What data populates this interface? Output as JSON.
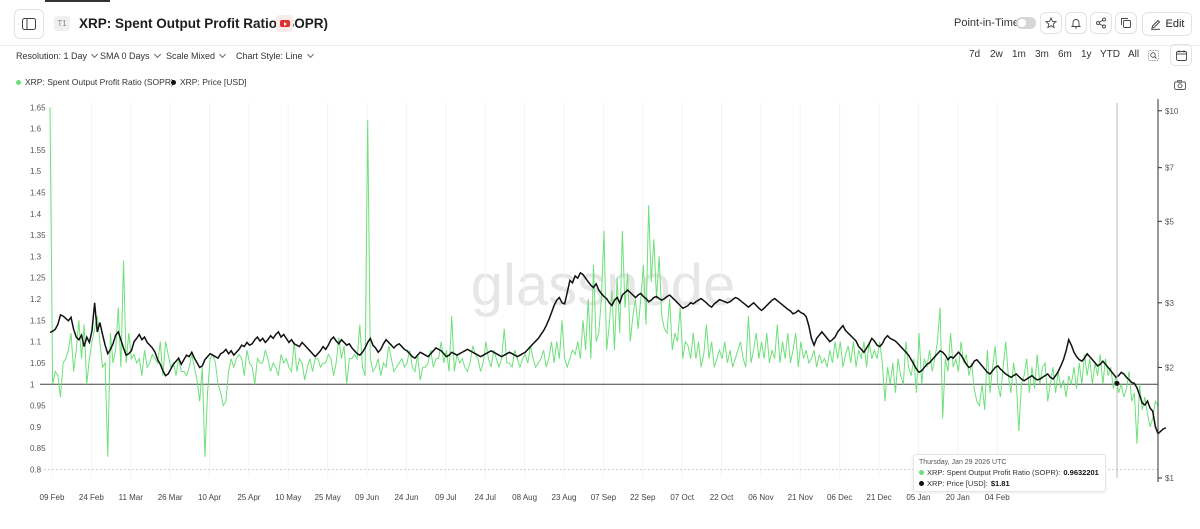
{
  "header": {
    "badge": "T1",
    "title": "XRP: Spent Output Profit Ratio (SOPR)",
    "point_in_time_label": "Point-in-Time",
    "edit_label": "Edit"
  },
  "toolbar": {
    "resolution": "Resolution: 1 Day",
    "sma": "SMA 0 Days",
    "scale": "Scale Mixed",
    "chart_style": "Chart Style: Line",
    "ranges": [
      "7d",
      "2w",
      "1m",
      "3m",
      "6m",
      "1y",
      "YTD",
      "All"
    ]
  },
  "colors": {
    "sopr": "#6ee07a",
    "price": "#111111",
    "reference": "#333333"
  },
  "chart_data": {
    "type": "line",
    "watermark": "glassnode",
    "x_tick_labels": [
      "09 Feb",
      "24 Feb",
      "11 Mar",
      "26 Mar",
      "10 Apr",
      "25 Apr",
      "10 May",
      "25 May",
      "09 Jun",
      "24 Jun",
      "09 Jul",
      "24 Jul",
      "08 Aug",
      "23 Aug",
      "07 Sep",
      "22 Sep",
      "07 Oct",
      "22 Oct",
      "06 Nov",
      "21 Nov",
      "06 Dec",
      "21 Dec",
      "05 Jan",
      "20 Jan",
      "04 Feb"
    ],
    "left_axis": {
      "ylim": [
        0.78,
        1.66
      ],
      "ticks": [
        "0.8",
        "0.85",
        "0.9",
        "0.95",
        "1",
        "1.05",
        "1.1",
        "1.15",
        "1.2",
        "1.25",
        "1.3",
        "1.35",
        "1.4",
        "1.45",
        "1.5",
        "1.55",
        "1.6",
        "1.65"
      ],
      "tick_values": [
        0.8,
        0.85,
        0.9,
        0.95,
        1,
        1.05,
        1.1,
        1.15,
        1.2,
        1.25,
        1.3,
        1.35,
        1.4,
        1.45,
        1.5,
        1.55,
        1.6,
        1.65
      ]
    },
    "right_axis": {
      "scale": "log",
      "ticks": [
        "$1",
        "$2",
        "$3",
        "$5",
        "$7",
        "$10"
      ],
      "tick_values": [
        1,
        2,
        3,
        5,
        7,
        10
      ]
    },
    "reference_line": 1,
    "series": [
      {
        "name": "XRP: Spent Output Profit Ratio (SOPR)",
        "axis": "left",
        "values": [
          1.65,
          1.0,
          1.03,
          1.02,
          0.97,
          1.05,
          1.06,
          1.08,
          1.12,
          1.03,
          1.08,
          1.15,
          1.06,
          1.14,
          1.0,
          1.06,
          1.1,
          1.13,
          1.16,
          1.1,
          1.04,
          1.05,
          0.83,
          1.12,
          1.05,
          1.08,
          1.18,
          1.04,
          1.29,
          1.05,
          1.12,
          1.06,
          1.07,
          1.05,
          1.06,
          1.02,
          1.08,
          1.04,
          1.05,
          1.07,
          1.06,
          1.05,
          1.1,
          1.02,
          1.1,
          1.07,
          1.04,
          1.05,
          1.02,
          1.06,
          1.03,
          1.03,
          1.02,
          1.04,
          1.07,
          1.04,
          1.01,
          0.96,
          1.04,
          0.83,
          0.98,
          1.06,
          1.07,
          1.05,
          1.0,
          0.98,
          0.95,
          0.96,
          1.03,
          1.06,
          1.04,
          1.06,
          1.07,
          1.06,
          1.02,
          1.08,
          1.05,
          1.04,
          1.0,
          1.06,
          1.05,
          1.05,
          1.08,
          1.06,
          1.03,
          1.05,
          1.04,
          1.02,
          1.07,
          1.05,
          1.06,
          1.04,
          1.03,
          1.1,
          1.03,
          1.06,
          1.05,
          1.01,
          1.04,
          1.06,
          1.03,
          1.06,
          1.06,
          1.04,
          1.05,
          1.05,
          1.07,
          1.06,
          1.02,
          1.05,
          1.11,
          1.06,
          1.09,
          1.0,
          1.06,
          1.06,
          1.07,
          1.06,
          1.14,
          1.04,
          1.02,
          1.62,
          1.06,
          1.03,
          1.04,
          1.06,
          1.02,
          1.05,
          1.04,
          1.09,
          1.06,
          1.03,
          1.04,
          1.05,
          1.06,
          1.04,
          1.05,
          1.08,
          1.04,
          1.03,
          1.07,
          1.01,
          1.04,
          1.04,
          1.05,
          1.08,
          1.04,
          1.06,
          1.06,
          1.1,
          1.05,
          1.08,
          1.03,
          1.16,
          1.03,
          1.07,
          1.05,
          1.06,
          1.04,
          1.03,
          1.05,
          1.09,
          1.07,
          1.06,
          1.03,
          1.05,
          1.1,
          1.06,
          1.04,
          1.08,
          1.06,
          1.04,
          1.06,
          1.13,
          1.05,
          1.05,
          1.04,
          1.08,
          1.06,
          1.04,
          1.06,
          1.07,
          1.05,
          1.09,
          1.06,
          1.04,
          1.05,
          1.06,
          1.08,
          1.04,
          1.06,
          1.1,
          1.05,
          1.1,
          1.06,
          1.15,
          1.06,
          1.04,
          1.06,
          1.08,
          1.07,
          1.1,
          1.06,
          1.15,
          1.08,
          1.2,
          1.06,
          1.28,
          1.1,
          1.12,
          1.2,
          1.36,
          1.08,
          1.14,
          1.22,
          1.08,
          1.25,
          1.12,
          1.36,
          1.18,
          1.26,
          1.1,
          1.16,
          1.2,
          1.13,
          1.2,
          1.28,
          1.14,
          1.42,
          1.24,
          1.34,
          1.2,
          1.3,
          1.16,
          1.13,
          1.12,
          1.2,
          1.08,
          1.12,
          1.1,
          1.18,
          1.06,
          1.1,
          1.09,
          1.06,
          1.12,
          1.06,
          1.1,
          1.04,
          1.07,
          1.14,
          1.06,
          1.1,
          1.04,
          1.06,
          1.08,
          1.06,
          1.1,
          1.05,
          1.08,
          1.04,
          1.06,
          1.08,
          1.1,
          1.06,
          1.04,
          1.16,
          1.05,
          1.08,
          1.12,
          1.06,
          1.1,
          1.06,
          1.12,
          1.05,
          1.08,
          1.06,
          1.14,
          1.05,
          1.1,
          1.06,
          1.12,
          1.05,
          1.08,
          1.12,
          1.04,
          1.1,
          1.06,
          1.08,
          1.05,
          1.06,
          1.08,
          1.04,
          1.07,
          1.05,
          1.06,
          1.04,
          1.08,
          1.05,
          1.1,
          1.06,
          1.1,
          1.04,
          1.07,
          1.09,
          1.05,
          1.1,
          1.04,
          1.08,
          1.06,
          1.1,
          1.04,
          1.1,
          1.06,
          1.08,
          1.06,
          1.1,
          1.05,
          0.96,
          1.04,
          1.0,
          1.05,
          0.98,
          1.06,
          1.02,
          1.0,
          1.1,
          1.04,
          1.02,
          1.06,
          0.98,
          1.12,
          1.0,
          1.06,
          1.04,
          1.08,
          1.03,
          1.06,
          1.1,
          1.18,
          0.92,
          1.06,
          1.03,
          1.12,
          1.04,
          1.06,
          1.03,
          1.1,
          1.05,
          1.07,
          1.02,
          1.05,
          0.99,
          0.96,
          0.95,
          1.0,
          0.94,
          1.08,
          0.98,
          1.04,
          1.09,
          1.0,
          0.97,
          1.04,
          1.1,
          1.02,
          0.98,
          1.05,
          1.01,
          0.89,
          1.0,
          1.02,
          1.06,
          0.98,
          1.04,
          0.99,
          1.07,
          1.0,
          1.04,
          1.05,
          0.96,
          1.0,
          1.04,
          0.98,
          1.03,
          0.99,
          1.01,
          0.97,
          1.02,
          1.0,
          1.04,
          0.99,
          1.05,
          1.0,
          1.07,
          1.02,
          1.06,
          1.0,
          1.05,
          1.02,
          1.07,
          1.0,
          1.06,
          1.02,
          1.04,
          0.99,
          1.02,
          0.98,
          1.0,
          0.97,
          0.99,
          1.03,
          0.96,
          0.98,
          0.86,
          1.0,
          0.94,
          0.97,
          0.93,
          0.9,
          0.92,
          0.96,
          0.95
        ],
        "color": "#6ee07a"
      },
      {
        "name": "XRP: Price [USD]",
        "axis": "right",
        "values": [
          2.49,
          2.51,
          2.54,
          2.62,
          2.78,
          2.76,
          2.72,
          2.68,
          2.74,
          2.54,
          2.42,
          2.38,
          2.45,
          2.28,
          2.42,
          2.34,
          2.52,
          3.0,
          2.5,
          2.65,
          2.46,
          2.3,
          2.18,
          2.24,
          2.32,
          2.45,
          2.5,
          2.38,
          2.26,
          2.16,
          2.18,
          2.22,
          2.35,
          2.4,
          2.46,
          2.38,
          2.42,
          2.34,
          2.3,
          2.26,
          2.2,
          2.1,
          2.04,
          1.96,
          1.9,
          1.92,
          1.98,
          2.04,
          2.08,
          2.12,
          2.04,
          2.1,
          2.16,
          2.14,
          2.2,
          2.12,
          2.06,
          2.0,
          2.02,
          2.1,
          2.14,
          2.18,
          2.16,
          2.14,
          2.12,
          2.18,
          2.2,
          2.24,
          2.18,
          2.22,
          2.16,
          2.2,
          2.24,
          2.3,
          2.28,
          2.34,
          2.3,
          2.32,
          2.38,
          2.42,
          2.36,
          2.4,
          2.34,
          2.38,
          2.44,
          2.4,
          2.46,
          2.5,
          2.42,
          2.46,
          2.4,
          2.34,
          2.38,
          2.32,
          2.3,
          2.28,
          2.34,
          2.3,
          2.26,
          2.22,
          2.18,
          2.14,
          2.18,
          2.22,
          2.28,
          2.24,
          2.3,
          2.38,
          2.42,
          2.36,
          2.32,
          2.38,
          2.34,
          2.3,
          2.32,
          2.26,
          2.22,
          2.18,
          2.16,
          2.2,
          2.26,
          2.34,
          2.4,
          2.3,
          2.26,
          2.2,
          2.24,
          2.32,
          2.38,
          2.34,
          2.3,
          2.26,
          2.3,
          2.32,
          2.28,
          2.24,
          2.22,
          2.18,
          2.14,
          2.12,
          2.16,
          2.2,
          2.18,
          2.16,
          2.14,
          2.18,
          2.22,
          2.26,
          2.24,
          2.22,
          2.18,
          2.14,
          2.16,
          2.2,
          2.18,
          2.16,
          2.18,
          2.2,
          2.22,
          2.24,
          2.22,
          2.2,
          2.18,
          2.16,
          2.14,
          2.16,
          2.18,
          2.2,
          2.22,
          2.2,
          2.18,
          2.16,
          2.14,
          2.16,
          2.18,
          2.2,
          2.18,
          2.16,
          2.14,
          2.16,
          2.18,
          2.2,
          2.24,
          2.28,
          2.32,
          2.36,
          2.4,
          2.46,
          2.52,
          2.6,
          2.7,
          2.82,
          2.95,
          3.05,
          3.1,
          3.0,
          2.98,
          3.2,
          3.45,
          3.4,
          3.55,
          3.5,
          3.62,
          3.58,
          3.5,
          3.42,
          3.35,
          3.3,
          3.38,
          3.25,
          3.18,
          3.12,
          3.08,
          3.0,
          2.95,
          3.05,
          3.1,
          3.0,
          3.15,
          3.2,
          3.25,
          3.2,
          3.15,
          3.1,
          3.15,
          3.18,
          3.12,
          3.08,
          3.02,
          3.05,
          3.1,
          3.12,
          3.08,
          3.05,
          3.08,
          3.12,
          3.15,
          3.1,
          3.05,
          3.0,
          2.95,
          2.9,
          2.92,
          2.95,
          3.0,
          2.98,
          3.02,
          3.05,
          3.08,
          3.04,
          3.0,
          2.95,
          2.92,
          2.98,
          3.02,
          3.06,
          3.04,
          3.02,
          3.0,
          3.02,
          3.06,
          3.1,
          3.08,
          3.04,
          3.0,
          2.96,
          2.92,
          2.96,
          3.0,
          2.95,
          2.9,
          2.86,
          2.9,
          2.95,
          3.0,
          3.05,
          3.08,
          3.04,
          3.0,
          2.96,
          2.92,
          2.88,
          2.85,
          2.8,
          2.82,
          2.86,
          2.82,
          2.8,
          2.75,
          2.6,
          2.4,
          2.3,
          2.4,
          2.45,
          2.5,
          2.45,
          2.4,
          2.35,
          2.38,
          2.42,
          2.5,
          2.55,
          2.6,
          2.52,
          2.48,
          2.44,
          2.4,
          2.36,
          2.28,
          2.24,
          2.2,
          2.26,
          2.32,
          2.4,
          2.36,
          2.3,
          2.28,
          2.32,
          2.4,
          2.44,
          2.4,
          2.38,
          2.36,
          2.32,
          2.28,
          2.24,
          2.2,
          2.16,
          2.1,
          2.04,
          1.98,
          1.94,
          1.96,
          2.0,
          2.04,
          2.06,
          2.1,
          2.14,
          2.18,
          2.22,
          2.2,
          2.16,
          2.1,
          2.14,
          2.12,
          2.16,
          2.2,
          2.16,
          2.1,
          2.04,
          2.0,
          2.02,
          2.08,
          2.1,
          2.06,
          2.02,
          1.98,
          1.94,
          1.92,
          1.96,
          2.0,
          2.02,
          1.98,
          1.95,
          1.92,
          1.9,
          1.88,
          1.9,
          1.92,
          1.89,
          1.86,
          1.84,
          1.86,
          1.88,
          1.9,
          1.87,
          1.85,
          1.86,
          1.88,
          1.9,
          1.92,
          1.88,
          1.86,
          1.9,
          1.95,
          2.02,
          2.1,
          2.22,
          2.38,
          2.3,
          2.2,
          2.14,
          2.1,
          2.08,
          2.12,
          2.18,
          2.14,
          2.1,
          2.06,
          2.02,
          2.04,
          2.08,
          2.04,
          2.0,
          1.96,
          1.92,
          1.88,
          1.9,
          1.94,
          1.92,
          1.88,
          1.85,
          1.82,
          1.81,
          1.76,
          1.68,
          1.6,
          1.58,
          1.62,
          1.55,
          1.52,
          1.38,
          1.32,
          1.34,
          1.36,
          1.37
        ],
        "color": "#111111"
      }
    ],
    "grid": true,
    "legend_placement": "top-left",
    "tooltip": {
      "date": "Thursday, Jan 29 2026 UTC",
      "sopr_label": "XRP: Spent Output Profit Ratio (SOPR):",
      "sopr_value": "0.9632201",
      "price_label": "XRP: Price [USD]:",
      "price_value": "$1.81",
      "sopr_at": 0.963,
      "price_at": 1.81
    }
  }
}
